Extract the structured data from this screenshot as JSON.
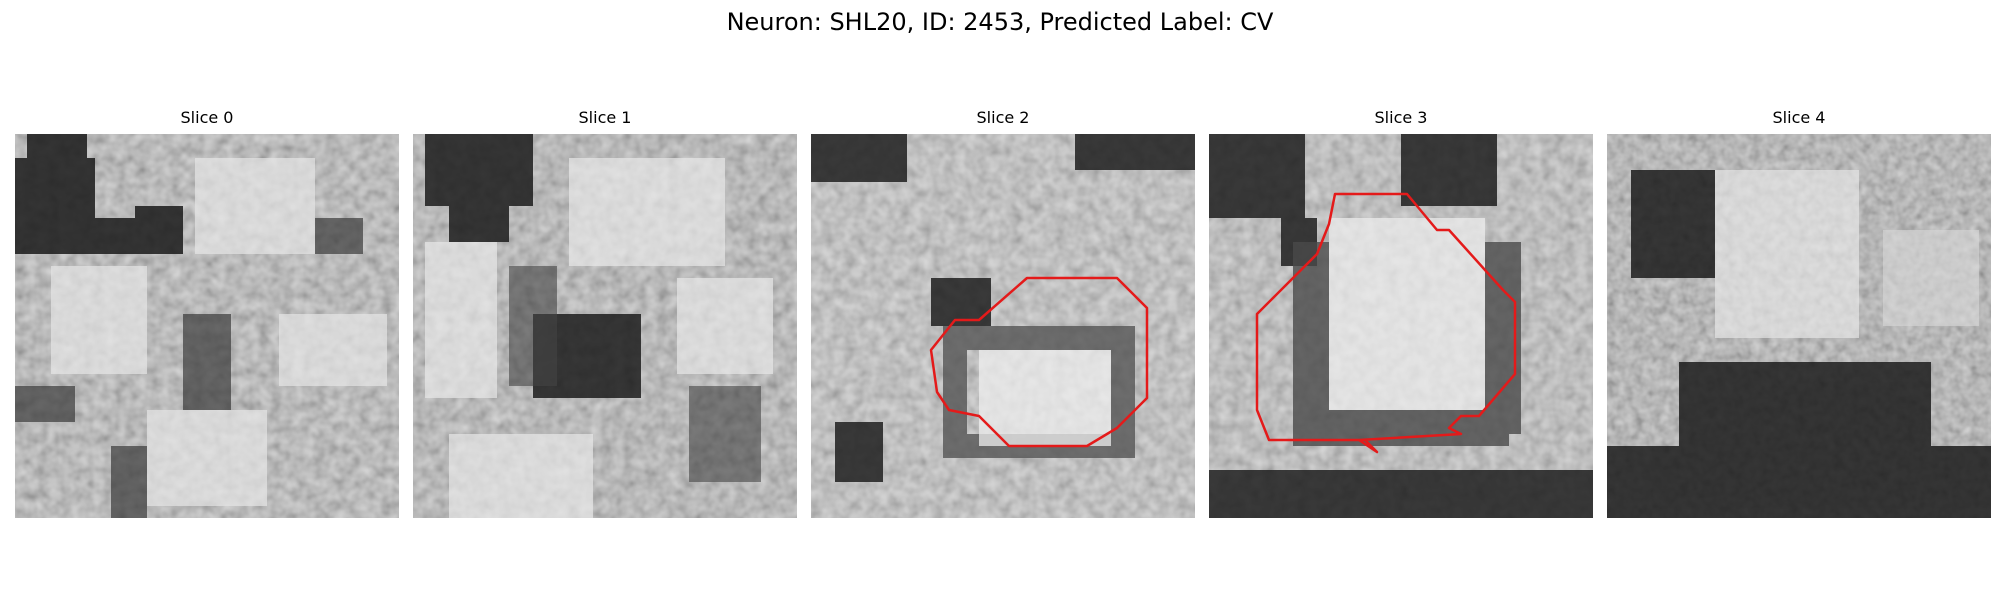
{
  "figure": {
    "title": "Neuron: SHL20, ID: 2453, Predicted Label: CV"
  },
  "panels": [
    {
      "title": "Slice 0",
      "has_contour": false
    },
    {
      "title": "Slice 1",
      "has_contour": false
    },
    {
      "title": "Slice 2",
      "has_contour": true
    },
    {
      "title": "Slice 3",
      "has_contour": true
    },
    {
      "title": "Slice 4",
      "has_contour": false
    }
  ],
  "colors": {
    "contour": "#e41a1a",
    "colormap": "grayscale"
  }
}
